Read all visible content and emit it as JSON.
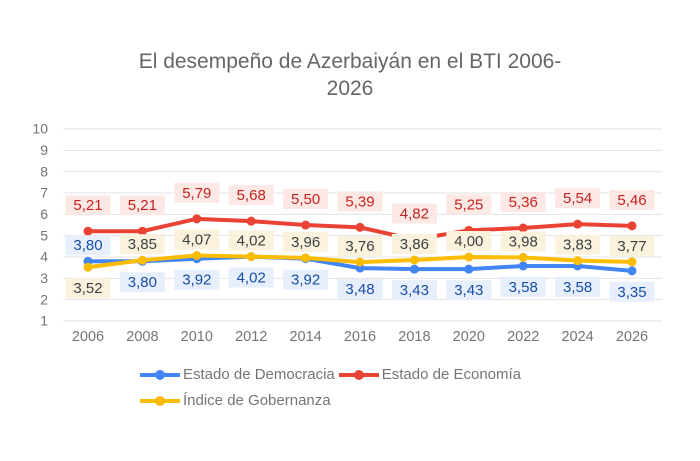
{
  "title": "El desempeño de Azerbaiyán en el BTI 2006-2026",
  "title_lines": [
    "El desempeño de Azerbaiyán en el BTI 2006-",
    "2026"
  ],
  "colors": {
    "background": "#ffffff",
    "gridline": "#e3e3e3",
    "axis_text": "#757575",
    "title_text": "#666666",
    "legend_text": "#757575"
  },
  "chart_data": {
    "type": "line",
    "title": "El desempeño de Azerbaiyán en el BTI 2006-2026",
    "categories": [
      "2006",
      "2008",
      "2010",
      "2012",
      "2014",
      "2016",
      "2018",
      "2020",
      "2022",
      "2024",
      "2026"
    ],
    "ylim": [
      1,
      10
    ],
    "yticks": [
      1,
      2,
      3,
      4,
      5,
      6,
      7,
      8,
      9,
      10
    ],
    "grid": true,
    "legend_position": "bottom",
    "series": [
      {
        "name": "Estado de Democracia",
        "color": "#4285f4",
        "label_color": "#174ea6",
        "label_bg": "#e7effc",
        "values": [
          3.8,
          3.8,
          3.92,
          4.02,
          3.92,
          3.48,
          3.43,
          3.43,
          3.58,
          3.58,
          3.35
        ],
        "labels": [
          "3,80",
          "3,80",
          "3,92",
          "4,02",
          "3,92",
          "3,48",
          "3,43",
          "3,43",
          "3,58",
          "3,58",
          "3,35"
        ],
        "label_side": [
          "above",
          "below",
          "below",
          "below",
          "below",
          "below",
          "below",
          "below",
          "below",
          "below",
          "below"
        ]
      },
      {
        "name": "Estado de Economía",
        "color": "#ea4335",
        "label_color": "#c5221f",
        "label_bg": "#fce9e6",
        "values": [
          5.21,
          5.21,
          5.79,
          5.68,
          5.5,
          5.39,
          4.82,
          5.25,
          5.36,
          5.54,
          5.46
        ],
        "labels": [
          "5,21",
          "5,21",
          "5,79",
          "5,68",
          "5,50",
          "5,39",
          "4,82",
          "5,25",
          "5,36",
          "5,54",
          "5,46"
        ],
        "label_side": [
          "above",
          "above",
          "above",
          "above",
          "above",
          "above",
          "above",
          "above",
          "above",
          "above",
          "above"
        ]
      },
      {
        "name": "Índice de Gobernanza",
        "color": "#fbbc04",
        "label_color": "#3c4043",
        "label_bg": "#faf2dc",
        "values": [
          3.52,
          3.85,
          4.07,
          4.02,
          3.96,
          3.76,
          3.86,
          4.0,
          3.98,
          3.83,
          3.77
        ],
        "labels": [
          "3,52",
          "3,85",
          "4,07",
          "4,02",
          "3,96",
          "3,76",
          "3,86",
          "4,00",
          "3,98",
          "3,83",
          "3,77"
        ],
        "label_side": [
          "below",
          "above",
          "above",
          "above",
          "above",
          "above",
          "above",
          "above",
          "above",
          "above",
          "above"
        ]
      }
    ]
  }
}
